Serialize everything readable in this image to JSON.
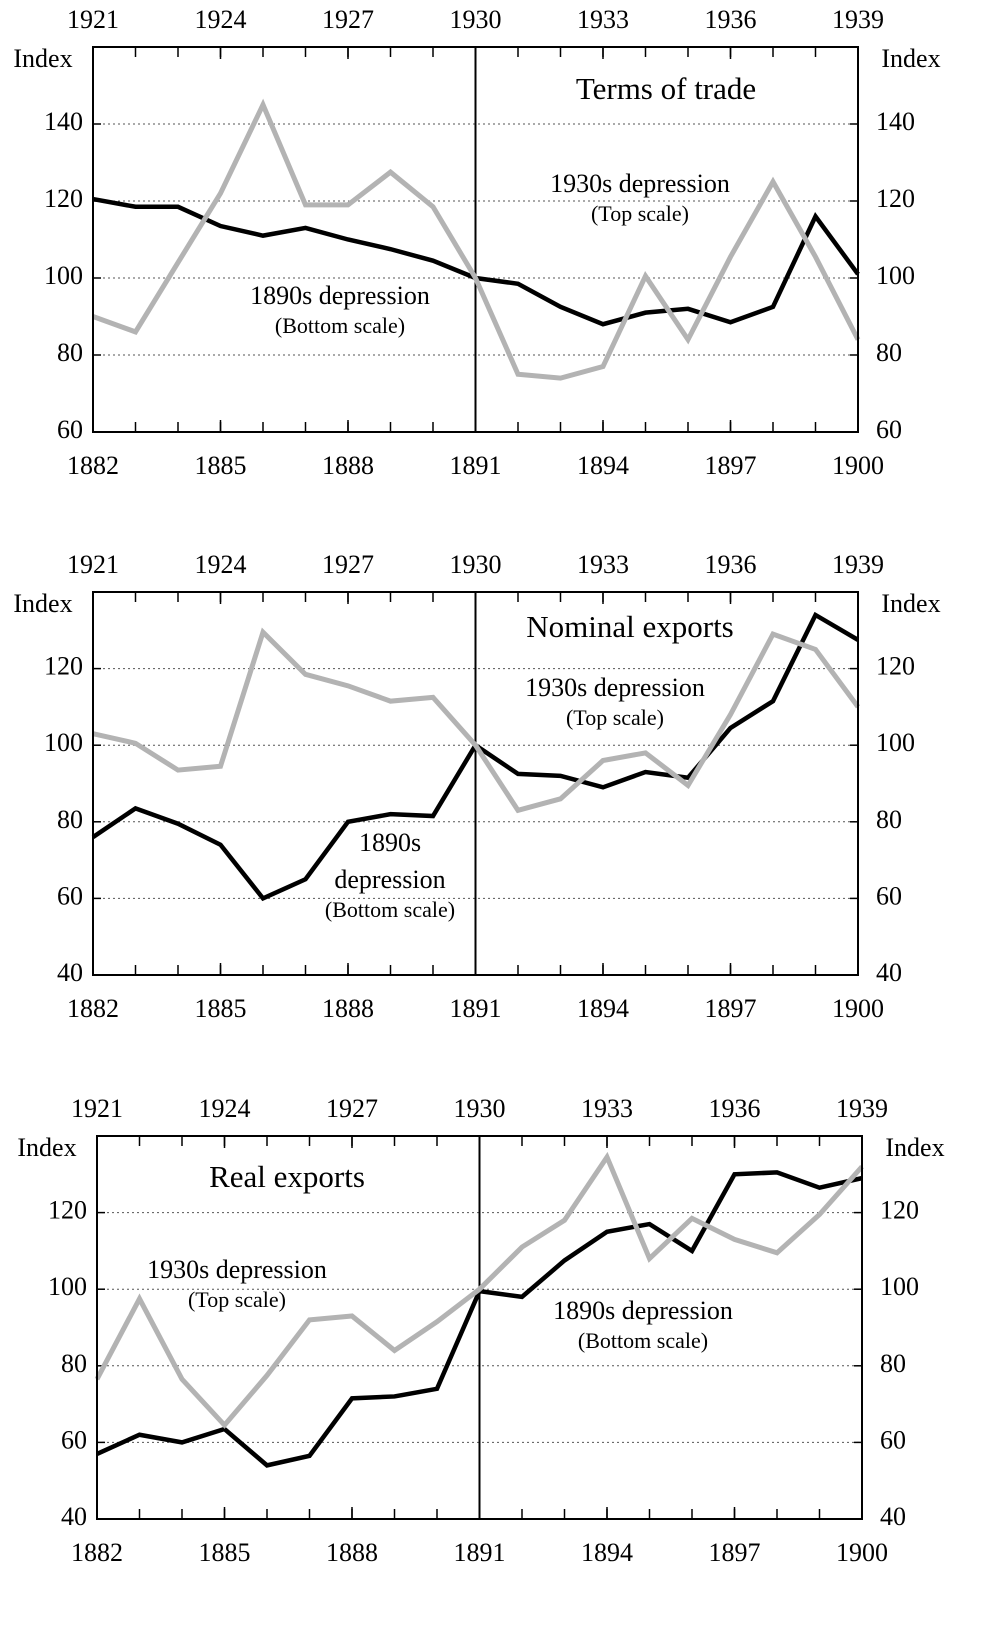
{
  "chart_data": [
    {
      "type": "line",
      "title": "Terms of trade",
      "ylabel": "Index",
      "xlim": [
        1882,
        1900
      ],
      "xticks": [
        1882,
        1885,
        1888,
        1891,
        1894,
        1897,
        1900
      ],
      "x2lim": [
        1921,
        1939
      ],
      "x2ticks": [
        1921,
        1924,
        1927,
        1930,
        1933,
        1936,
        1939
      ],
      "ylim": [
        60,
        160
      ],
      "yticks": [
        60,
        80,
        100,
        120,
        140
      ],
      "grid": true,
      "vline": 1891,
      "series": [
        {
          "label": [
            "1890s depression"
          ],
          "scale_note": "(Bottom scale)",
          "color": "#000000",
          "x": [
            1882,
            1883,
            1884,
            1885,
            1886,
            1887,
            1888,
            1889,
            1890,
            1891,
            1892,
            1893,
            1894,
            1895,
            1896,
            1897,
            1898,
            1899,
            1900
          ],
          "values": [
            120.5,
            118.5,
            118.5,
            113.5,
            111,
            113,
            110,
            107.5,
            104.5,
            100,
            98.5,
            92.5,
            88,
            91,
            92,
            88.5,
            92.5,
            116,
            101
          ]
        },
        {
          "label": [
            "1930s depression"
          ],
          "scale_note": "(Top scale)",
          "color": "#b3b3b3",
          "axis": "x2",
          "x": [
            1921,
            1922,
            1923,
            1924,
            1925,
            1926,
            1927,
            1928,
            1929,
            1930,
            1931,
            1932,
            1933,
            1934,
            1935,
            1936,
            1937,
            1938,
            1939
          ],
          "values": [
            90,
            86,
            104,
            122,
            145,
            119,
            119,
            127.5,
            118.5,
            100,
            75,
            74,
            77,
            100.5,
            84,
            105.5,
            125,
            105.5,
            84
          ]
        }
      ]
    },
    {
      "type": "line",
      "title": "Nominal exports",
      "ylabel": "Index",
      "xlim": [
        1882,
        1900
      ],
      "xticks": [
        1882,
        1885,
        1888,
        1891,
        1894,
        1897,
        1900
      ],
      "x2lim": [
        1921,
        1939
      ],
      "x2ticks": [
        1921,
        1924,
        1927,
        1930,
        1933,
        1936,
        1939
      ],
      "ylim": [
        40,
        140
      ],
      "yticks": [
        40,
        60,
        80,
        100,
        120
      ],
      "grid": true,
      "vline": 1891,
      "series": [
        {
          "label": [
            "1890s",
            "depression"
          ],
          "scale_note": "(Bottom scale)",
          "color": "#000000",
          "x": [
            1882,
            1883,
            1884,
            1885,
            1886,
            1887,
            1888,
            1889,
            1890,
            1891,
            1892,
            1893,
            1894,
            1895,
            1896,
            1897,
            1898,
            1899,
            1900
          ],
          "values": [
            76,
            83.5,
            79.5,
            74,
            60,
            65,
            80,
            82,
            81.5,
            100,
            92.5,
            92,
            89,
            93,
            91.5,
            104.5,
            111.5,
            134,
            127.5
          ]
        },
        {
          "label": [
            "1930s depression"
          ],
          "scale_note": "(Top scale)",
          "color": "#b3b3b3",
          "axis": "x2",
          "x": [
            1921,
            1922,
            1923,
            1924,
            1925,
            1926,
            1927,
            1928,
            1929,
            1930,
            1931,
            1932,
            1933,
            1934,
            1935,
            1936,
            1937,
            1938,
            1939
          ],
          "values": [
            103,
            100.5,
            93.5,
            94.5,
            129.5,
            118.5,
            115.5,
            111.5,
            112.5,
            100,
            83,
            86,
            96,
            98,
            89.5,
            108,
            129,
            125,
            110
          ]
        }
      ]
    },
    {
      "type": "line",
      "title": "Real exports",
      "ylabel": "Index",
      "xlim": [
        1882,
        1900
      ],
      "xticks": [
        1882,
        1885,
        1888,
        1891,
        1894,
        1897,
        1900
      ],
      "x2lim": [
        1921,
        1939
      ],
      "x2ticks": [
        1921,
        1924,
        1927,
        1930,
        1933,
        1936,
        1939
      ],
      "ylim": [
        40,
        140
      ],
      "yticks": [
        40,
        60,
        80,
        100,
        120
      ],
      "grid": true,
      "vline": 1891,
      "series": [
        {
          "label": [
            "1890s depression"
          ],
          "scale_note": "(Bottom scale)",
          "color": "#000000",
          "x": [
            1882,
            1883,
            1884,
            1885,
            1886,
            1887,
            1888,
            1889,
            1890,
            1891,
            1892,
            1893,
            1894,
            1895,
            1896,
            1897,
            1898,
            1899,
            1900
          ],
          "values": [
            57,
            62,
            60,
            63.5,
            54,
            56.5,
            71.5,
            72,
            74,
            99.5,
            98,
            107.5,
            115,
            117,
            110,
            130,
            130.5,
            126.5,
            129
          ]
        },
        {
          "label": [
            "1930s depression"
          ],
          "scale_note": "(Top scale)",
          "color": "#b3b3b3",
          "axis": "x2",
          "x": [
            1921,
            1922,
            1923,
            1924,
            1925,
            1926,
            1927,
            1928,
            1929,
            1930,
            1931,
            1932,
            1933,
            1934,
            1935,
            1936,
            1937,
            1938,
            1939
          ],
          "values": [
            76.5,
            97.5,
            76.5,
            64.5,
            77.5,
            92,
            93,
            84,
            91.5,
            100,
            111,
            118,
            134.5,
            108,
            118.5,
            113,
            109.5,
            119.5,
            132
          ]
        }
      ]
    }
  ]
}
